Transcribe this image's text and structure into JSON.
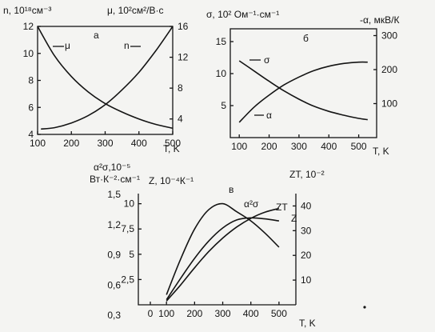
{
  "chart_data": [
    {
      "panel": "а",
      "type": "line",
      "x_ticks": [
        "100",
        "200",
        "300",
        "400",
        "500"
      ],
      "xlabel": "T, K",
      "xlim": [
        100,
        500
      ],
      "left_axis": {
        "label": "n, 10¹⁸см⁻³",
        "ticks": [
          "4",
          "6",
          "8",
          "10",
          "12"
        ],
        "ylim": [
          4,
          12
        ]
      },
      "right_axis": {
        "label": "μ, 10²см²/В·с",
        "ticks": [
          "4",
          "8",
          "12",
          "16"
        ],
        "ylim": [
          2,
          16
        ]
      },
      "series": [
        {
          "name": "μ",
          "axis": "right",
          "x": [
            100,
            150,
            200,
            250,
            300,
            350,
            400,
            450,
            500
          ],
          "y": [
            16,
            12.2,
            9.5,
            7.5,
            6,
            4.9,
            4,
            3.3,
            2.8
          ]
        },
        {
          "name": "n",
          "axis": "left",
          "x": [
            110,
            150,
            200,
            250,
            300,
            350,
            400,
            450,
            500
          ],
          "y": [
            4.4,
            4.5,
            4.85,
            5.4,
            6.2,
            7.3,
            8.6,
            10.2,
            12
          ]
        }
      ]
    },
    {
      "panel": "б",
      "type": "line",
      "x_ticks": [
        "100",
        "200",
        "300",
        "400",
        "500"
      ],
      "xlabel": "T, K",
      "xlim": [
        70,
        560
      ],
      "left_axis": {
        "label": "σ, 10² Ом⁻¹·см⁻¹",
        "ticks": [
          "5",
          "10",
          "15"
        ],
        "ylim": [
          0,
          17
        ]
      },
      "right_axis": {
        "label": "-α, мкВ/К",
        "ticks": [
          "100",
          "200",
          "300"
        ],
        "ylim": [
          0,
          320
        ]
      },
      "series": [
        {
          "name": "σ",
          "axis": "left",
          "x": [
            100,
            150,
            200,
            250,
            300,
            350,
            400,
            450,
            500,
            530
          ],
          "y": [
            12,
            10.4,
            8.8,
            7.3,
            6.0,
            4.9,
            4.1,
            3.5,
            3.0,
            2.8
          ]
        },
        {
          "name": "α",
          "axis": "right",
          "x": [
            100,
            150,
            200,
            250,
            300,
            350,
            400,
            450,
            500,
            530
          ],
          "y": [
            45,
            90,
            125,
            155,
            178,
            197,
            210,
            218,
            222,
            222
          ]
        }
      ]
    },
    {
      "panel": "в",
      "type": "line",
      "x_ticks": [
        "0",
        "100",
        "200",
        "300",
        "400",
        "500"
      ],
      "xlabel": "T, K",
      "xlim": [
        0,
        560
      ],
      "outer_left_axis": {
        "label_line1": "α²σ,10⁻⁵",
        "label_line2": "Вт·К⁻²·см⁻¹",
        "ticks": [
          "0,3",
          "0,6",
          "0,9",
          "1,2",
          "1,5"
        ]
      },
      "left_axis": {
        "label": "Z, 10⁻⁴К⁻¹",
        "ticks": [
          "2,5",
          "5",
          "7,5",
          "10"
        ],
        "ylim": [
          0,
          11
        ]
      },
      "right_axis": {
        "label": "ZT, 10⁻²",
        "ticks": [
          "10",
          "20",
          "30",
          "40"
        ],
        "ylim": [
          0,
          45
        ]
      },
      "series": [
        {
          "name": "α²σ",
          "axis": "left",
          "x": [
            100,
            150,
            200,
            250,
            300,
            350,
            400,
            450,
            500
          ],
          "y": [
            1,
            4.5,
            7.5,
            9.4,
            10,
            9.2,
            8.3,
            7.1,
            5.7
          ]
        },
        {
          "name": "Z",
          "axis": "left",
          "x": [
            100,
            150,
            200,
            250,
            300,
            350,
            400,
            450,
            500
          ],
          "y": [
            0.5,
            2.6,
            4.6,
            6.3,
            7.6,
            8.4,
            8.6,
            8.5,
            8.3
          ]
        },
        {
          "name": "ZT",
          "axis": "right",
          "x": [
            100,
            150,
            200,
            250,
            300,
            350,
            400,
            450,
            500
          ],
          "y": [
            1.5,
            8,
            15,
            21.5,
            27,
            31.5,
            35,
            37.5,
            39
          ]
        }
      ]
    }
  ]
}
